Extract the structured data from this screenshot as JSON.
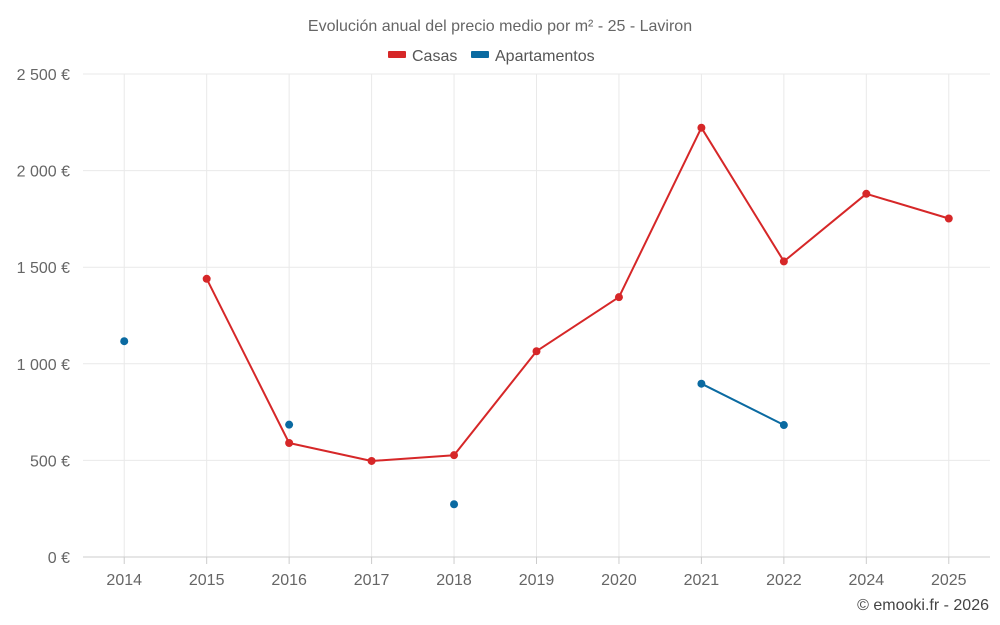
{
  "chart_data": {
    "type": "line",
    "title": "Evolución anual del precio medio por m² - 25 - Laviron",
    "categories": [
      "2014",
      "2015",
      "2016",
      "2017",
      "2018",
      "2019",
      "2020",
      "2021",
      "2022",
      "2024",
      "2025"
    ],
    "series": [
      {
        "name": "Casas",
        "color": "#d62728",
        "values": [
          null,
          1440,
          590,
          497,
          527,
          1065,
          1345,
          2222,
          1530,
          1880,
          1752
        ]
      },
      {
        "name": "Apartamentos",
        "color": "#0a6aa1",
        "values": [
          1117,
          null,
          685,
          null,
          273,
          null,
          null,
          897,
          683,
          null,
          null
        ]
      }
    ],
    "yticks": [
      "0 €",
      "500 €",
      "1 000 €",
      "1 500 €",
      "2 000 €",
      "2 500 €"
    ],
    "ylim": [
      0,
      2500
    ],
    "grid": true,
    "legend": "top-center",
    "credit": "© emooki.fr - 2026"
  }
}
